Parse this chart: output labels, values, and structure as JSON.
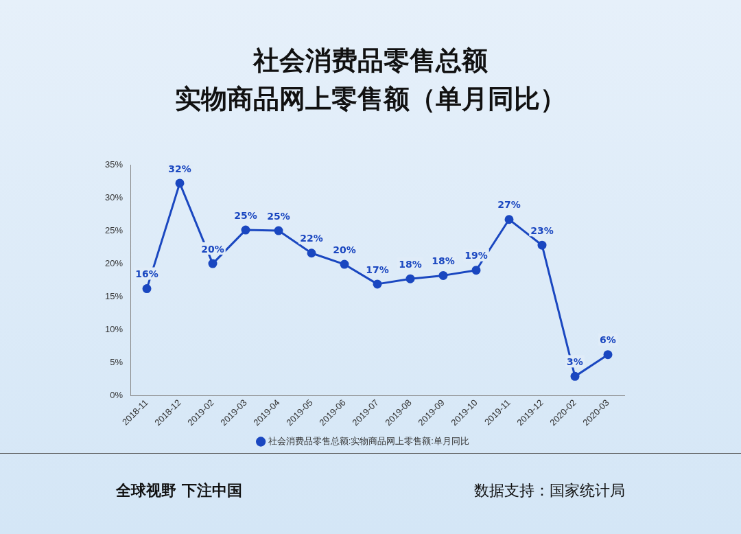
{
  "chart_data": {
    "type": "line",
    "title": "社会消费品零售总额",
    "subtitle": "实物商品网上零售额（单月同比）",
    "categories": [
      "2018-11",
      "2018-12",
      "2019-02",
      "2019-03",
      "2019-04",
      "2019-05",
      "2019-06",
      "2019-07",
      "2019-08",
      "2019-09",
      "2019-10",
      "2019-11",
      "2019-12",
      "2020-02",
      "2020-03"
    ],
    "series": [
      {
        "name": "社会消费品零售总额:实物商品网上零售额:单月同比",
        "color": "#1a47c0",
        "values": [
          16.2,
          32.2,
          20.0,
          25.1,
          25.0,
          21.6,
          19.9,
          16.9,
          17.7,
          18.2,
          19.0,
          26.7,
          22.8,
          2.9,
          6.2
        ],
        "value_labels": [
          "16%",
          "32%",
          "20%",
          "25%",
          "25%",
          "22%",
          "20%",
          "17%",
          "18%",
          "18%",
          "19%",
          "27%",
          "23%",
          "3%",
          "6%"
        ]
      }
    ],
    "ylim": [
      0,
      35
    ],
    "yticks": [
      {
        "value": 0,
        "label": "0%"
      },
      {
        "value": 5,
        "label": "5%"
      },
      {
        "value": 10,
        "label": "10%"
      },
      {
        "value": 15,
        "label": "15%"
      },
      {
        "value": 20,
        "label": "20%"
      },
      {
        "value": 25,
        "label": "25%"
      },
      {
        "value": 30,
        "label": "30%"
      },
      {
        "value": 35,
        "label": "35%"
      }
    ],
    "grid": false,
    "legend": "bottom",
    "marker": "circle",
    "line_style": "solid",
    "annotations": [
      "全球视野 下注中国",
      "数据支持：国家统计局"
    ]
  }
}
